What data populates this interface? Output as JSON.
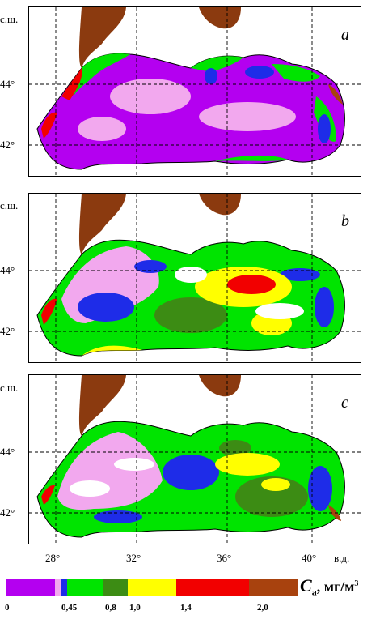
{
  "map_data": {
    "panels": [
      {
        "letter": "a",
        "lat_labels": [
          "с.ш.",
          "44°",
          "42°"
        ]
      },
      {
        "letter": "b",
        "lat_labels": [
          "с.ш.",
          "44°",
          "42°"
        ]
      },
      {
        "letter": "c",
        "lat_labels": [
          "с.ш.",
          "44°",
          "42°"
        ]
      }
    ],
    "lon_labels": [
      "28°",
      "32°",
      "36°",
      "40°"
    ],
    "lon_unit": "в.д.",
    "colors": {
      "land": "#8b3a0f",
      "violet": "#b400f0",
      "pink": "#f2a8ee",
      "blue": "#1e2ce8",
      "green": "#00e400",
      "dkgreen": "#3c8c14",
      "yellow": "#ffff00",
      "red": "#f20000",
      "brown": "#a8420e"
    }
  },
  "legend": {
    "segments": [
      {
        "color": "#b400f0",
        "from": 0,
        "to": 0.4
      },
      {
        "color": "#f2a8ee",
        "from": 0.4,
        "to": 0.45
      },
      {
        "color": "#1e2ce8",
        "from": 0.45,
        "to": 0.5
      },
      {
        "color": "#00e400",
        "from": 0.5,
        "to": 0.8
      },
      {
        "color": "#3c8c14",
        "from": 0.8,
        "to": 1.0
      },
      {
        "color": "#ffff00",
        "from": 1.0,
        "to": 1.4
      },
      {
        "color": "#f20000",
        "from": 1.4,
        "to": 2.0
      },
      {
        "color": "#a8420e",
        "from": 2.0,
        "to": 2.4
      }
    ],
    "tick_labels": [
      "0",
      "0,45",
      "0,8",
      "1,0",
      "1,4",
      "2,0"
    ],
    "unit_symbol": "C",
    "unit_sub": "a",
    "unit_text": ", мг/м",
    "unit_sup": "3"
  }
}
